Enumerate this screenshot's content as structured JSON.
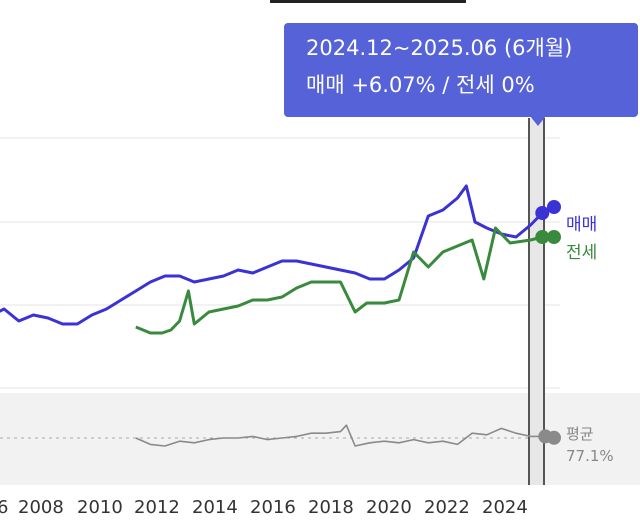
{
  "tooltip": {
    "period": "2024.12~2025.06 (6개월)",
    "values": "매매 +6.07%  /  전세 0%"
  },
  "legend": {
    "sale": "매매",
    "jeonse": "전세",
    "avg": "평균",
    "avg_value": "77.1%"
  },
  "colors": {
    "sale": "#3b32d6",
    "jeonse": "#3a8a3e",
    "avg": "#8a8a8a",
    "tooltip": "#5662d8"
  },
  "chart_data": {
    "type": "line",
    "x_ticks": [
      "6",
      "2008",
      "2010",
      "2012",
      "2014",
      "2016",
      "2018",
      "2020",
      "2022",
      "2024"
    ],
    "series": [
      {
        "name": "매매",
        "x": [
          2005.9,
          2006.5,
          2007.0,
          2007.5,
          2008.0,
          2008.5,
          2009.0,
          2009.5,
          2010.0,
          2010.5,
          2011.0,
          2011.5,
          2012.0,
          2012.5,
          2013.0,
          2013.5,
          2014.0,
          2014.5,
          2015.0,
          2015.5,
          2016.0,
          2016.5,
          2017.0,
          2017.5,
          2018.0,
          2018.5,
          2019.0,
          2019.5,
          2020.0,
          2020.5,
          2021.0,
          2021.5,
          2022.0,
          2022.3,
          2022.6,
          2023.0,
          2023.5,
          2024.0,
          2024.5,
          2024.9,
          2025.3
        ],
        "y": [
          18,
          21,
          17,
          19,
          18,
          16,
          16,
          19,
          21,
          24,
          27,
          30,
          32,
          32,
          30,
          31,
          32,
          34,
          33,
          35,
          37,
          37,
          36,
          35,
          34,
          33,
          31,
          31,
          34,
          38,
          52,
          54,
          58,
          62,
          50,
          48,
          46,
          45,
          49,
          53,
          55
        ]
      },
      {
        "name": "전세",
        "x": [
          2011.0,
          2011.5,
          2011.9,
          2012.2,
          2012.5,
          2012.8,
          2013.0,
          2013.5,
          2014.0,
          2014.5,
          2015.0,
          2015.5,
          2016.0,
          2016.5,
          2017.0,
          2017.5,
          2018.0,
          2018.5,
          2018.9,
          2019.5,
          2020.0,
          2020.5,
          2021.0,
          2021.5,
          2022.0,
          2022.5,
          2022.9,
          2023.3,
          2023.8,
          2024.5,
          2024.9,
          2025.3
        ],
        "y": [
          15,
          13,
          13,
          14,
          17,
          27,
          16,
          20,
          21,
          22,
          24,
          24,
          25,
          28,
          30,
          30,
          30,
          20,
          23,
          23,
          24,
          40,
          35,
          40,
          42,
          44,
          31,
          48,
          43,
          44,
          45,
          45
        ]
      },
      {
        "name": "평균",
        "x": [
          2011.0,
          2011.5,
          2012.0,
          2012.5,
          2013.0,
          2013.5,
          2014.0,
          2014.5,
          2015.0,
          2015.5,
          2016.0,
          2016.5,
          2017.0,
          2017.5,
          2018.0,
          2018.2,
          2018.5,
          2019.0,
          2019.5,
          2020.0,
          2020.5,
          2021.0,
          2021.5,
          2022.0,
          2022.5,
          2023.0,
          2023.5,
          2024.0,
          2024.5,
          2025.0,
          2025.3
        ],
        "y": [
          77,
          73,
          72,
          75,
          74,
          76,
          77,
          77,
          78,
          76,
          77,
          78,
          80,
          80,
          81,
          85,
          72,
          74,
          75,
          74,
          76,
          74,
          75,
          73,
          80,
          79,
          83,
          80,
          78,
          78,
          77.1
        ]
      }
    ],
    "highlight_period": [
      "2024.12",
      "2025.06"
    ]
  }
}
